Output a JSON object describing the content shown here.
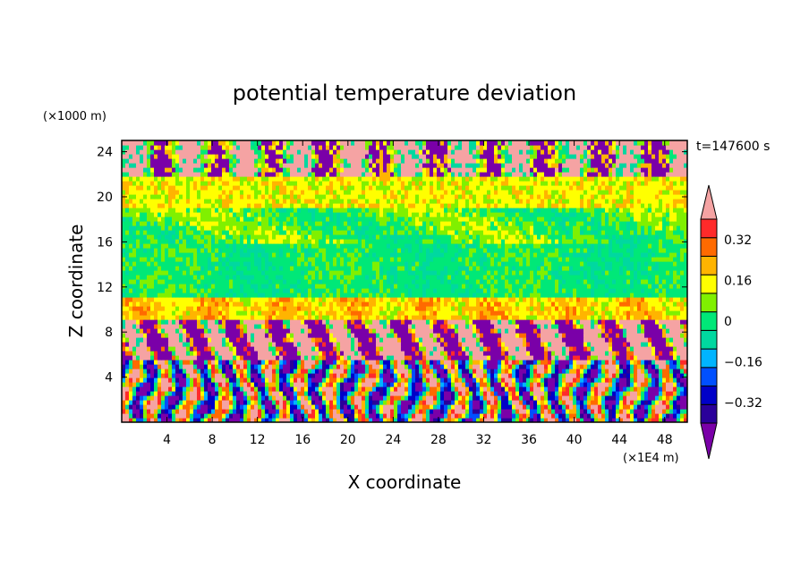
{
  "chart_data": {
    "type": "heatmap",
    "title": "potential temperature deviation",
    "time_label": "t=147600 s",
    "xlabel": "X coordinate",
    "ylabel": "Z coordinate",
    "x_unit": "(×1E4 m)",
    "y_unit": "(×1000 m)",
    "xlim": [
      0,
      50
    ],
    "ylim": [
      0,
      25
    ],
    "x_ticks": [
      4,
      8,
      12,
      16,
      20,
      24,
      28,
      32,
      36,
      40,
      44,
      48
    ],
    "y_ticks": [
      4,
      8,
      12,
      16,
      20,
      24
    ],
    "colorbar": {
      "levels": [
        -0.4,
        -0.32,
        -0.24,
        -0.16,
        -0.08,
        0,
        0.08,
        0.16,
        0.24,
        0.32,
        0.4
      ],
      "colors": [
        "#7a00a8",
        "#2a009a",
        "#0000c8",
        "#0050ff",
        "#00b4ff",
        "#00d8a0",
        "#00e878",
        "#80f000",
        "#ffff00",
        "#ffb400",
        "#ff6a00",
        "#ff2a2a",
        "#f5a3a3"
      ],
      "tick_labels": [
        "0.32",
        "0.16",
        "0",
        "-0.16",
        "-0.32"
      ],
      "tick_values": [
        0.32,
        0.16,
        0,
        -0.16,
        -0.32
      ]
    },
    "z_bands": [
      {
        "z": [
          0,
          5.5
        ],
        "value": "oscillating -0.4 to 0.4"
      },
      {
        "z": [
          5.5,
          9
        ],
        "value": "mixed -0.4 / 0.4 (purple / pink)"
      },
      {
        "z": [
          9,
          11
        ],
        "value": "0.16 to 0.32 (yellow / orange)"
      },
      {
        "z": [
          11,
          16
        ],
        "value": "-0.08 to 0.08 (green)"
      },
      {
        "z": [
          16,
          19
        ],
        "value": "0 to 0.16 (green / yellow)"
      },
      {
        "z": [
          19,
          22
        ],
        "value": "0.16 to 0.24 (yellow / orange)"
      },
      {
        "z": [
          22,
          25
        ],
        "value": "mixed -0.4 / 0.4 (purple / pink)"
      }
    ]
  }
}
